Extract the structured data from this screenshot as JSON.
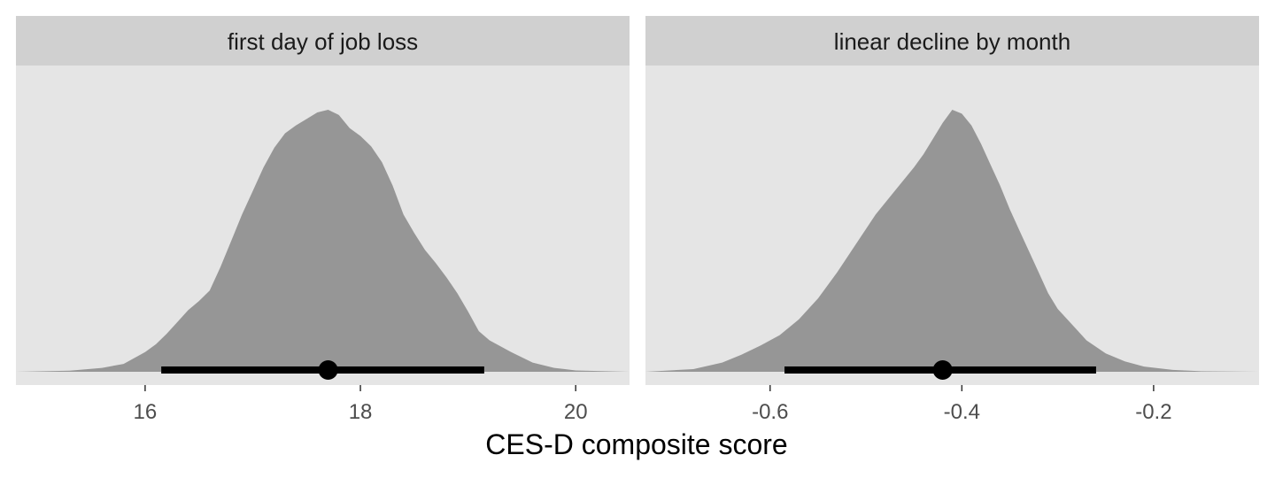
{
  "chart_data": {
    "type": "area",
    "xlabel": "CES-D composite score",
    "colors": {
      "panel_background": "#e5e5e5",
      "strip_background": "#d0d0d0",
      "density_fill": "#969696",
      "interval": "#000000",
      "tick": "#333333"
    },
    "grid": false,
    "panels": [
      {
        "strip_label": "first day of job loss",
        "xlim": [
          14.8,
          20.5
        ],
        "x_ticks": [
          16,
          18,
          20
        ],
        "tick_labels": [
          "16",
          "18",
          "20"
        ],
        "point_estimate": 17.7,
        "interval": [
          16.15,
          19.15
        ],
        "density": [
          [
            14.8,
            0.0
          ],
          [
            15.3,
            0.004
          ],
          [
            15.6,
            0.015
          ],
          [
            15.8,
            0.03
          ],
          [
            16.0,
            0.075
          ],
          [
            16.1,
            0.105
          ],
          [
            16.2,
            0.145
          ],
          [
            16.3,
            0.19
          ],
          [
            16.4,
            0.235
          ],
          [
            16.5,
            0.27
          ],
          [
            16.6,
            0.31
          ],
          [
            16.7,
            0.4
          ],
          [
            16.8,
            0.5
          ],
          [
            16.9,
            0.6
          ],
          [
            17.0,
            0.69
          ],
          [
            17.1,
            0.78
          ],
          [
            17.2,
            0.855
          ],
          [
            17.3,
            0.91
          ],
          [
            17.4,
            0.94
          ],
          [
            17.5,
            0.965
          ],
          [
            17.6,
            0.99
          ],
          [
            17.7,
            1.0
          ],
          [
            17.8,
            0.98
          ],
          [
            17.9,
            0.93
          ],
          [
            18.0,
            0.9
          ],
          [
            18.1,
            0.86
          ],
          [
            18.2,
            0.8
          ],
          [
            18.3,
            0.71
          ],
          [
            18.4,
            0.6
          ],
          [
            18.5,
            0.53
          ],
          [
            18.6,
            0.465
          ],
          [
            18.7,
            0.415
          ],
          [
            18.8,
            0.36
          ],
          [
            18.9,
            0.3
          ],
          [
            19.0,
            0.23
          ],
          [
            19.1,
            0.155
          ],
          [
            19.2,
            0.12
          ],
          [
            19.4,
            0.075
          ],
          [
            19.6,
            0.035
          ],
          [
            19.8,
            0.015
          ],
          [
            20.0,
            0.005
          ],
          [
            20.5,
            0.0
          ]
        ]
      },
      {
        "strip_label": "linear decline by month",
        "xlim": [
          -0.73,
          -0.09
        ],
        "x_ticks": [
          -0.6,
          -0.4,
          -0.2
        ],
        "tick_labels": [
          "-0.6",
          "-0.4",
          "-0.2"
        ],
        "point_estimate": -0.42,
        "interval": [
          -0.585,
          -0.26
        ],
        "density": [
          [
            -0.73,
            0.0
          ],
          [
            -0.68,
            0.01
          ],
          [
            -0.65,
            0.035
          ],
          [
            -0.63,
            0.065
          ],
          [
            -0.61,
            0.1
          ],
          [
            -0.59,
            0.14
          ],
          [
            -0.57,
            0.2
          ],
          [
            -0.55,
            0.28
          ],
          [
            -0.53,
            0.38
          ],
          [
            -0.51,
            0.49
          ],
          [
            -0.49,
            0.6
          ],
          [
            -0.47,
            0.69
          ],
          [
            -0.45,
            0.78
          ],
          [
            -0.44,
            0.83
          ],
          [
            -0.43,
            0.89
          ],
          [
            -0.42,
            0.95
          ],
          [
            -0.41,
            1.0
          ],
          [
            -0.4,
            0.985
          ],
          [
            -0.39,
            0.94
          ],
          [
            -0.38,
            0.87
          ],
          [
            -0.37,
            0.79
          ],
          [
            -0.36,
            0.71
          ],
          [
            -0.35,
            0.62
          ],
          [
            -0.34,
            0.54
          ],
          [
            -0.33,
            0.46
          ],
          [
            -0.32,
            0.38
          ],
          [
            -0.31,
            0.3
          ],
          [
            -0.3,
            0.24
          ],
          [
            -0.29,
            0.2
          ],
          [
            -0.28,
            0.16
          ],
          [
            -0.27,
            0.12
          ],
          [
            -0.25,
            0.07
          ],
          [
            -0.23,
            0.04
          ],
          [
            -0.21,
            0.02
          ],
          [
            -0.18,
            0.007
          ],
          [
            -0.15,
            0.002
          ],
          [
            -0.09,
            0.0
          ]
        ]
      }
    ]
  }
}
